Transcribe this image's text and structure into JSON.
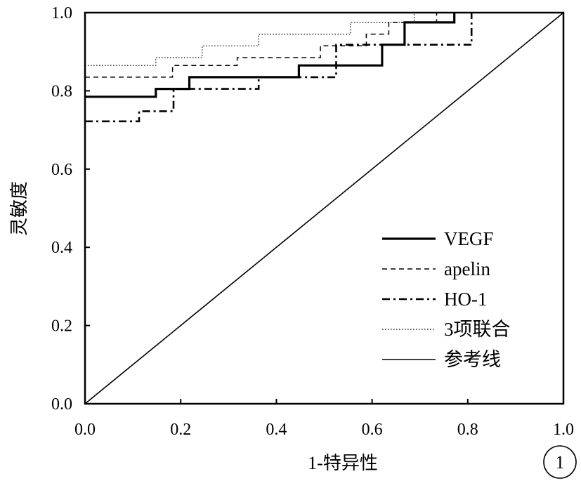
{
  "chart_data": {
    "type": "line",
    "subtype": "roc",
    "title": "",
    "xlabel": "1-特异性",
    "ylabel": "灵敏度",
    "xlim": [
      0,
      1
    ],
    "ylim": [
      0,
      1
    ],
    "xticks": [
      "0.0",
      "0.2",
      "0.4",
      "0.6",
      "0.8",
      "1.0"
    ],
    "yticks": [
      "0.0",
      "0.2",
      "0.4",
      "0.6",
      "0.8",
      "1.0"
    ],
    "grid": false,
    "legend_position": "bottom-right",
    "panel_label": "1",
    "series": [
      {
        "name": "VEGF",
        "style": "solid-thick",
        "x": [
          0,
          0.148,
          0.148,
          0.218,
          0.218,
          0.447,
          0.447,
          0.621,
          0.621,
          0.668,
          0.668,
          0.772,
          0.772
        ],
        "y": [
          0.785,
          0.785,
          0.805,
          0.805,
          0.835,
          0.835,
          0.865,
          0.865,
          0.918,
          0.918,
          0.975,
          0.975,
          1.0
        ]
      },
      {
        "name": "apelin",
        "style": "dashed",
        "x": [
          0,
          0.183,
          0.183,
          0.318,
          0.318,
          0.492,
          0.492,
          0.588,
          0.588,
          0.635,
          0.635,
          0.735,
          0.735
        ],
        "y": [
          0.835,
          0.835,
          0.865,
          0.865,
          0.885,
          0.885,
          0.915,
          0.915,
          0.945,
          0.945,
          0.975,
          0.975,
          1.0
        ]
      },
      {
        "name": "HO-1",
        "style": "dash-dot",
        "x": [
          0,
          0.113,
          0.113,
          0.185,
          0.185,
          0.363,
          0.363,
          0.525,
          0.525,
          0.808,
          0.808
        ],
        "y": [
          0.722,
          0.722,
          0.748,
          0.748,
          0.805,
          0.805,
          0.835,
          0.835,
          0.918,
          0.918,
          1.0
        ]
      },
      {
        "name": "3项联合",
        "style": "dotted",
        "x": [
          0,
          0.148,
          0.148,
          0.245,
          0.245,
          0.363,
          0.363,
          0.555,
          0.555,
          0.688,
          0.688
        ],
        "y": [
          0.865,
          0.865,
          0.885,
          0.885,
          0.915,
          0.915,
          0.945,
          0.945,
          0.975,
          0.975,
          1.0
        ]
      },
      {
        "name": "参考线",
        "style": "solid-thin",
        "x": [
          0,
          1
        ],
        "y": [
          0,
          1
        ]
      }
    ]
  }
}
